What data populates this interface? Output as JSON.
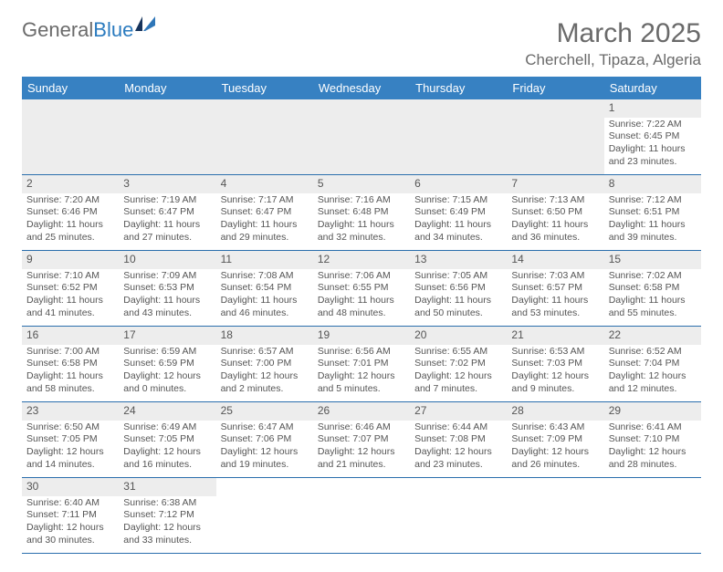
{
  "brand": {
    "general": "General",
    "blue": "Blue"
  },
  "title": "March 2025",
  "location": "Cherchell, Tipaza, Algeria",
  "colors": {
    "headerBg": "#3781c2",
    "headerText": "#ffffff",
    "border": "#2b6fad",
    "daynumBg": "#ededed",
    "bodyText": "#555555",
    "logoGray": "#6b6b6b",
    "logoBlue": "#2b7bbf"
  },
  "dayHeaders": [
    "Sunday",
    "Monday",
    "Tuesday",
    "Wednesday",
    "Thursday",
    "Friday",
    "Saturday"
  ],
  "weeks": [
    [
      null,
      null,
      null,
      null,
      null,
      null,
      {
        "n": "1",
        "sr": "Sunrise: 7:22 AM",
        "ss": "Sunset: 6:45 PM",
        "d1": "Daylight: 11 hours",
        "d2": "and 23 minutes."
      }
    ],
    [
      {
        "n": "2",
        "sr": "Sunrise: 7:20 AM",
        "ss": "Sunset: 6:46 PM",
        "d1": "Daylight: 11 hours",
        "d2": "and 25 minutes."
      },
      {
        "n": "3",
        "sr": "Sunrise: 7:19 AM",
        "ss": "Sunset: 6:47 PM",
        "d1": "Daylight: 11 hours",
        "d2": "and 27 minutes."
      },
      {
        "n": "4",
        "sr": "Sunrise: 7:17 AM",
        "ss": "Sunset: 6:47 PM",
        "d1": "Daylight: 11 hours",
        "d2": "and 29 minutes."
      },
      {
        "n": "5",
        "sr": "Sunrise: 7:16 AM",
        "ss": "Sunset: 6:48 PM",
        "d1": "Daylight: 11 hours",
        "d2": "and 32 minutes."
      },
      {
        "n": "6",
        "sr": "Sunrise: 7:15 AM",
        "ss": "Sunset: 6:49 PM",
        "d1": "Daylight: 11 hours",
        "d2": "and 34 minutes."
      },
      {
        "n": "7",
        "sr": "Sunrise: 7:13 AM",
        "ss": "Sunset: 6:50 PM",
        "d1": "Daylight: 11 hours",
        "d2": "and 36 minutes."
      },
      {
        "n": "8",
        "sr": "Sunrise: 7:12 AM",
        "ss": "Sunset: 6:51 PM",
        "d1": "Daylight: 11 hours",
        "d2": "and 39 minutes."
      }
    ],
    [
      {
        "n": "9",
        "sr": "Sunrise: 7:10 AM",
        "ss": "Sunset: 6:52 PM",
        "d1": "Daylight: 11 hours",
        "d2": "and 41 minutes."
      },
      {
        "n": "10",
        "sr": "Sunrise: 7:09 AM",
        "ss": "Sunset: 6:53 PM",
        "d1": "Daylight: 11 hours",
        "d2": "and 43 minutes."
      },
      {
        "n": "11",
        "sr": "Sunrise: 7:08 AM",
        "ss": "Sunset: 6:54 PM",
        "d1": "Daylight: 11 hours",
        "d2": "and 46 minutes."
      },
      {
        "n": "12",
        "sr": "Sunrise: 7:06 AM",
        "ss": "Sunset: 6:55 PM",
        "d1": "Daylight: 11 hours",
        "d2": "and 48 minutes."
      },
      {
        "n": "13",
        "sr": "Sunrise: 7:05 AM",
        "ss": "Sunset: 6:56 PM",
        "d1": "Daylight: 11 hours",
        "d2": "and 50 minutes."
      },
      {
        "n": "14",
        "sr": "Sunrise: 7:03 AM",
        "ss": "Sunset: 6:57 PM",
        "d1": "Daylight: 11 hours",
        "d2": "and 53 minutes."
      },
      {
        "n": "15",
        "sr": "Sunrise: 7:02 AM",
        "ss": "Sunset: 6:58 PM",
        "d1": "Daylight: 11 hours",
        "d2": "and 55 minutes."
      }
    ],
    [
      {
        "n": "16",
        "sr": "Sunrise: 7:00 AM",
        "ss": "Sunset: 6:58 PM",
        "d1": "Daylight: 11 hours",
        "d2": "and 58 minutes."
      },
      {
        "n": "17",
        "sr": "Sunrise: 6:59 AM",
        "ss": "Sunset: 6:59 PM",
        "d1": "Daylight: 12 hours",
        "d2": "and 0 minutes."
      },
      {
        "n": "18",
        "sr": "Sunrise: 6:57 AM",
        "ss": "Sunset: 7:00 PM",
        "d1": "Daylight: 12 hours",
        "d2": "and 2 minutes."
      },
      {
        "n": "19",
        "sr": "Sunrise: 6:56 AM",
        "ss": "Sunset: 7:01 PM",
        "d1": "Daylight: 12 hours",
        "d2": "and 5 minutes."
      },
      {
        "n": "20",
        "sr": "Sunrise: 6:55 AM",
        "ss": "Sunset: 7:02 PM",
        "d1": "Daylight: 12 hours",
        "d2": "and 7 minutes."
      },
      {
        "n": "21",
        "sr": "Sunrise: 6:53 AM",
        "ss": "Sunset: 7:03 PM",
        "d1": "Daylight: 12 hours",
        "d2": "and 9 minutes."
      },
      {
        "n": "22",
        "sr": "Sunrise: 6:52 AM",
        "ss": "Sunset: 7:04 PM",
        "d1": "Daylight: 12 hours",
        "d2": "and 12 minutes."
      }
    ],
    [
      {
        "n": "23",
        "sr": "Sunrise: 6:50 AM",
        "ss": "Sunset: 7:05 PM",
        "d1": "Daylight: 12 hours",
        "d2": "and 14 minutes."
      },
      {
        "n": "24",
        "sr": "Sunrise: 6:49 AM",
        "ss": "Sunset: 7:05 PM",
        "d1": "Daylight: 12 hours",
        "d2": "and 16 minutes."
      },
      {
        "n": "25",
        "sr": "Sunrise: 6:47 AM",
        "ss": "Sunset: 7:06 PM",
        "d1": "Daylight: 12 hours",
        "d2": "and 19 minutes."
      },
      {
        "n": "26",
        "sr": "Sunrise: 6:46 AM",
        "ss": "Sunset: 7:07 PM",
        "d1": "Daylight: 12 hours",
        "d2": "and 21 minutes."
      },
      {
        "n": "27",
        "sr": "Sunrise: 6:44 AM",
        "ss": "Sunset: 7:08 PM",
        "d1": "Daylight: 12 hours",
        "d2": "and 23 minutes."
      },
      {
        "n": "28",
        "sr": "Sunrise: 6:43 AM",
        "ss": "Sunset: 7:09 PM",
        "d1": "Daylight: 12 hours",
        "d2": "and 26 minutes."
      },
      {
        "n": "29",
        "sr": "Sunrise: 6:41 AM",
        "ss": "Sunset: 7:10 PM",
        "d1": "Daylight: 12 hours",
        "d2": "and 28 minutes."
      }
    ],
    [
      {
        "n": "30",
        "sr": "Sunrise: 6:40 AM",
        "ss": "Sunset: 7:11 PM",
        "d1": "Daylight: 12 hours",
        "d2": "and 30 minutes."
      },
      {
        "n": "31",
        "sr": "Sunrise: 6:38 AM",
        "ss": "Sunset: 7:12 PM",
        "d1": "Daylight: 12 hours",
        "d2": "and 33 minutes."
      },
      null,
      null,
      null,
      null,
      null
    ]
  ]
}
